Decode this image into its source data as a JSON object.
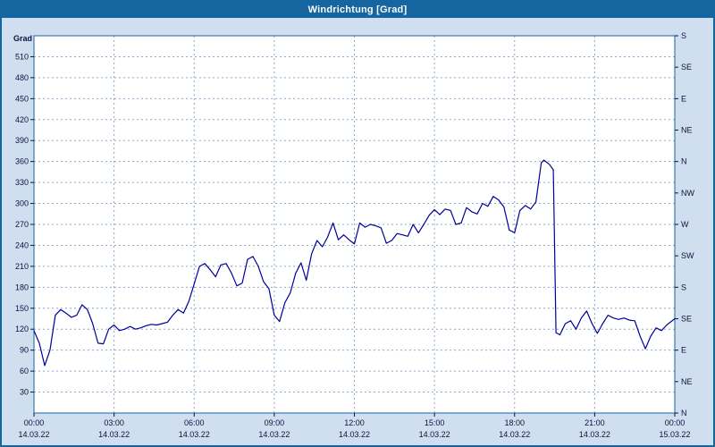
{
  "window": {
    "title": "Windrichtung [Grad]"
  },
  "colors": {
    "title_bar": "#1565a0",
    "window_bg": "#cfdfef",
    "plot_bg": "#ffffff",
    "border": "#1565a0",
    "grid": "#8aa8cc",
    "line": "#000099",
    "label": "#101040"
  },
  "chart_data": {
    "type": "line",
    "title": "Windrichtung [Grad]",
    "ylabel": "Grad",
    "ylim": [
      0,
      540
    ],
    "xlim_hours": [
      0,
      24
    ],
    "grid": "dashed",
    "legend_position": "none",
    "y_ticks": [
      30,
      60,
      90,
      120,
      150,
      180,
      210,
      240,
      270,
      300,
      330,
      360,
      390,
      420,
      450,
      480,
      510
    ],
    "y2_labels": [
      {
        "deg": 540,
        "label": "S"
      },
      {
        "deg": 495,
        "label": "SE"
      },
      {
        "deg": 450,
        "label": "E"
      },
      {
        "deg": 405,
        "label": "NE"
      },
      {
        "deg": 360,
        "label": "N"
      },
      {
        "deg": 315,
        "label": "NW"
      },
      {
        "deg": 270,
        "label": "W"
      },
      {
        "deg": 225,
        "label": "SW"
      },
      {
        "deg": 180,
        "label": "S"
      },
      {
        "deg": 135,
        "label": "SE"
      },
      {
        "deg": 90,
        "label": "E"
      },
      {
        "deg": 45,
        "label": "NE"
      },
      {
        "deg": 0,
        "label": "N"
      }
    ],
    "x_ticks": [
      {
        "h": 0,
        "time": "00:00",
        "date": "14.03.22"
      },
      {
        "h": 3,
        "time": "03:00",
        "date": "14.03.22"
      },
      {
        "h": 6,
        "time": "06:00",
        "date": "14.03.22"
      },
      {
        "h": 9,
        "time": "09:00",
        "date": "14.03.22"
      },
      {
        "h": 12,
        "time": "12:00",
        "date": "14.03.22"
      },
      {
        "h": 15,
        "time": "15:00",
        "date": "14.03.22"
      },
      {
        "h": 18,
        "time": "18:00",
        "date": "14.03.22"
      },
      {
        "h": 21,
        "time": "21:00",
        "date": "14.03.22"
      },
      {
        "h": 24,
        "time": "00:00",
        "date": "15.03.22"
      }
    ],
    "series": [
      {
        "name": "Windrichtung",
        "color": "#000099",
        "points": [
          [
            0,
            118
          ],
          [
            0.2,
            100
          ],
          [
            0.4,
            68
          ],
          [
            0.6,
            90
          ],
          [
            0.8,
            140
          ],
          [
            1,
            148
          ],
          [
            1.2,
            143
          ],
          [
            1.4,
            137
          ],
          [
            1.6,
            140
          ],
          [
            1.8,
            155
          ],
          [
            2,
            148
          ],
          [
            2.2,
            128
          ],
          [
            2.4,
            100
          ],
          [
            2.6,
            99
          ],
          [
            2.8,
            120
          ],
          [
            3,
            126
          ],
          [
            3.2,
            118
          ],
          [
            3.4,
            120
          ],
          [
            3.6,
            124
          ],
          [
            3.8,
            120
          ],
          [
            4,
            122
          ],
          [
            4.2,
            125
          ],
          [
            4.4,
            127
          ],
          [
            4.6,
            126
          ],
          [
            4.8,
            128
          ],
          [
            5,
            130
          ],
          [
            5.2,
            140
          ],
          [
            5.4,
            148
          ],
          [
            5.6,
            143
          ],
          [
            5.8,
            160
          ],
          [
            6,
            185
          ],
          [
            6.2,
            210
          ],
          [
            6.4,
            214
          ],
          [
            6.6,
            205
          ],
          [
            6.8,
            195
          ],
          [
            7,
            212
          ],
          [
            7.2,
            214
          ],
          [
            7.4,
            200
          ],
          [
            7.6,
            182
          ],
          [
            7.8,
            186
          ],
          [
            8,
            220
          ],
          [
            8.2,
            224
          ],
          [
            8.4,
            210
          ],
          [
            8.6,
            188
          ],
          [
            8.8,
            178
          ],
          [
            9,
            140
          ],
          [
            9.2,
            131
          ],
          [
            9.4,
            158
          ],
          [
            9.6,
            172
          ],
          [
            9.8,
            200
          ],
          [
            10,
            215
          ],
          [
            10.2,
            190
          ],
          [
            10.4,
            228
          ],
          [
            10.6,
            247
          ],
          [
            10.8,
            238
          ],
          [
            11,
            252
          ],
          [
            11.2,
            272
          ],
          [
            11.4,
            248
          ],
          [
            11.6,
            255
          ],
          [
            11.8,
            248
          ],
          [
            12,
            242
          ],
          [
            12.2,
            272
          ],
          [
            12.4,
            266
          ],
          [
            12.6,
            270
          ],
          [
            12.8,
            268
          ],
          [
            13,
            265
          ],
          [
            13.2,
            243
          ],
          [
            13.4,
            247
          ],
          [
            13.6,
            257
          ],
          [
            13.8,
            255
          ],
          [
            14,
            253
          ],
          [
            14.2,
            270
          ],
          [
            14.4,
            258
          ],
          [
            14.6,
            270
          ],
          [
            14.8,
            283
          ],
          [
            15,
            291
          ],
          [
            15.2,
            284
          ],
          [
            15.4,
            292
          ],
          [
            15.6,
            290
          ],
          [
            15.8,
            270
          ],
          [
            16,
            272
          ],
          [
            16.2,
            294
          ],
          [
            16.4,
            288
          ],
          [
            16.6,
            285
          ],
          [
            16.8,
            300
          ],
          [
            17,
            296
          ],
          [
            17.2,
            310
          ],
          [
            17.4,
            305
          ],
          [
            17.6,
            295
          ],
          [
            17.8,
            262
          ],
          [
            18,
            258
          ],
          [
            18.2,
            290
          ],
          [
            18.4,
            297
          ],
          [
            18.6,
            292
          ],
          [
            18.8,
            302
          ],
          [
            19,
            358
          ],
          [
            19.1,
            362
          ],
          [
            19.3,
            356
          ],
          [
            19.45,
            348
          ],
          [
            19.55,
            115
          ],
          [
            19.7,
            112
          ],
          [
            19.9,
            128
          ],
          [
            20.1,
            132
          ],
          [
            20.3,
            120
          ],
          [
            20.5,
            136
          ],
          [
            20.7,
            146
          ],
          [
            20.9,
            128
          ],
          [
            21.1,
            114
          ],
          [
            21.3,
            128
          ],
          [
            21.5,
            140
          ],
          [
            21.7,
            136
          ],
          [
            21.9,
            134
          ],
          [
            22.1,
            136
          ],
          [
            22.3,
            133
          ],
          [
            22.5,
            132
          ],
          [
            22.7,
            110
          ],
          [
            22.9,
            92
          ],
          [
            23.1,
            110
          ],
          [
            23.3,
            122
          ],
          [
            23.5,
            118
          ],
          [
            23.7,
            126
          ],
          [
            24,
            135
          ]
        ]
      }
    ]
  }
}
